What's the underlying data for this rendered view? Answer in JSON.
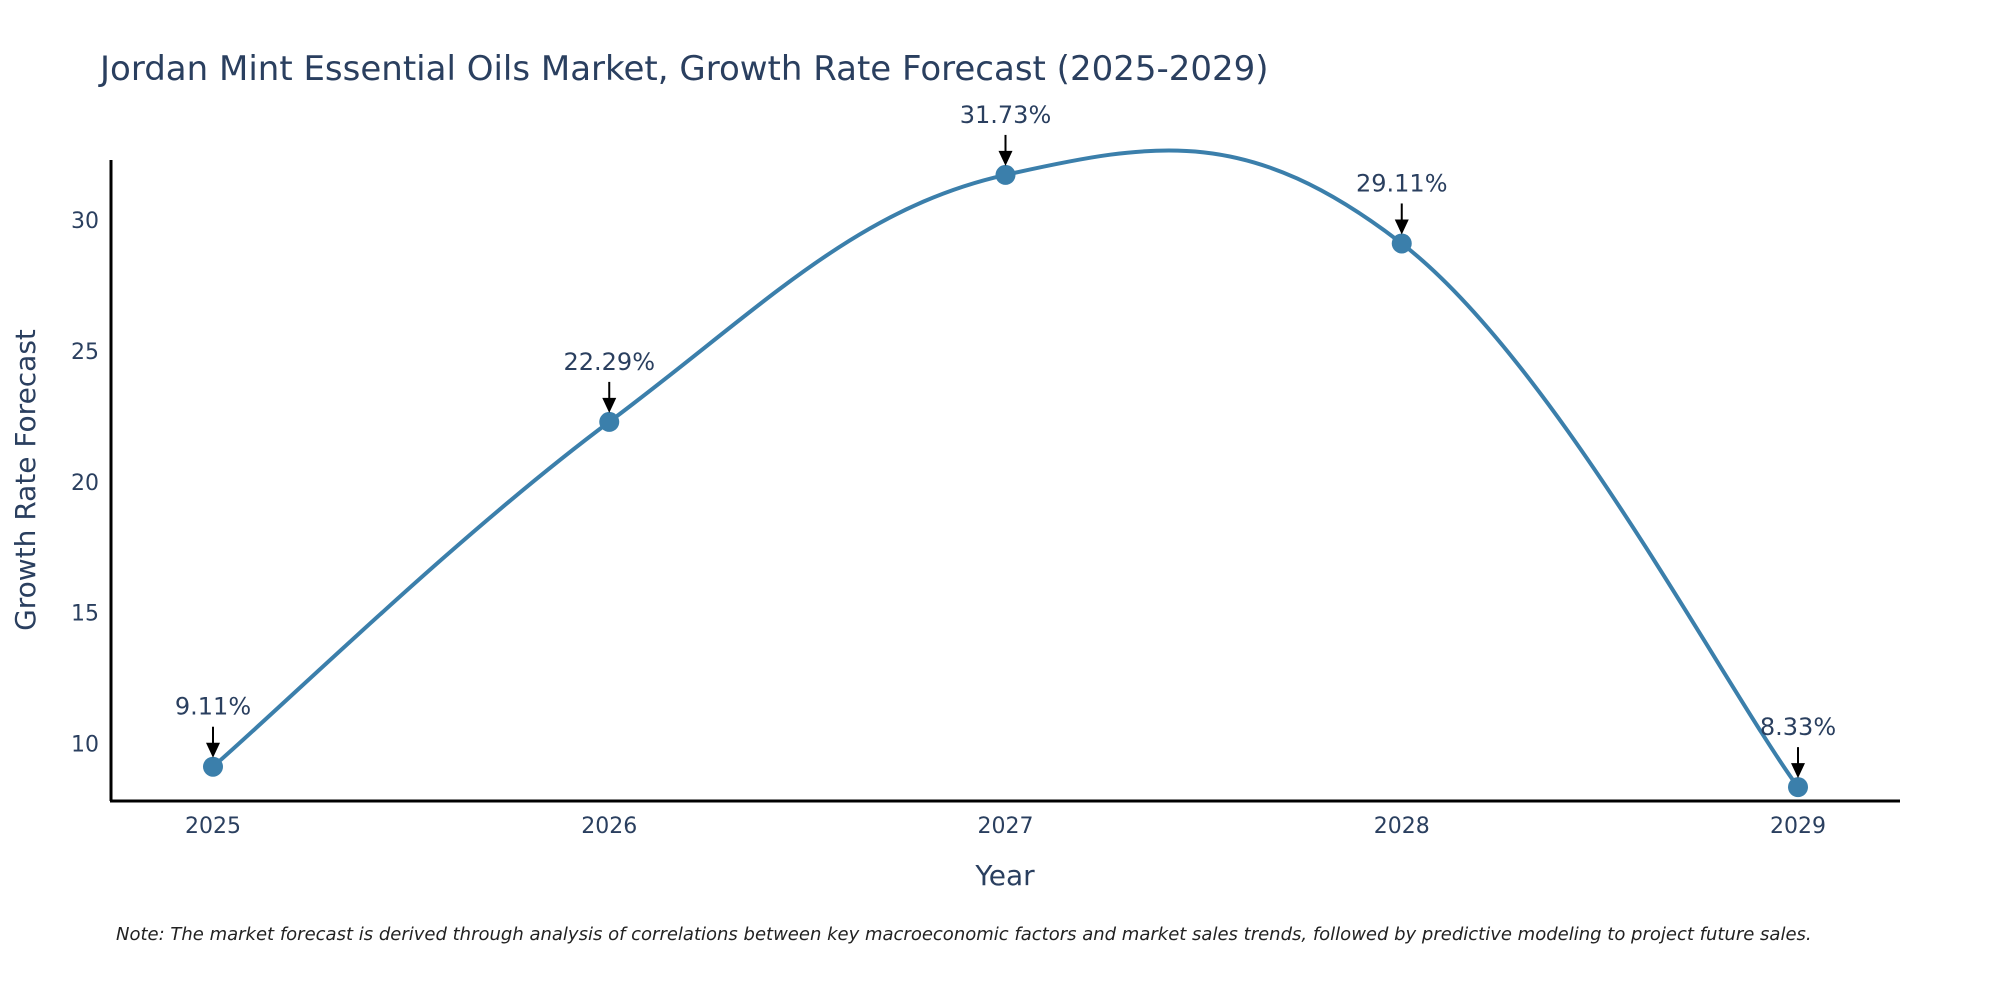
{
  "chart_data": {
    "type": "line",
    "title": "Jordan Mint Essential Oils Market, Growth Rate Forecast (2025-2029)",
    "xlabel": "Year",
    "ylabel": "Growth Rate Forecast",
    "categories": [
      "2025",
      "2026",
      "2027",
      "2028",
      "2029"
    ],
    "series": [
      {
        "name": "Growth Rate Forecast",
        "values": [
          9.11,
          22.29,
          31.73,
          29.11,
          8.33
        ],
        "labels": [
          "9.11%",
          "22.29%",
          "31.73%",
          "29.11%",
          "8.33%"
        ]
      }
    ],
    "yticks": [
      10,
      15,
      20,
      25,
      30
    ],
    "ylim": [
      7.8,
      32.3
    ],
    "grid": false,
    "line_shape": "spline",
    "colors": {
      "line": "#3b7fab",
      "marker": "#3b7fab",
      "text": "#2a3f5f",
      "axis": "#000000",
      "arrow": "#000000"
    },
    "note": "Note: The market forecast is derived through analysis of correlations between key macroeconomic factors and market sales trends, followed by predictive modeling to project future sales."
  }
}
